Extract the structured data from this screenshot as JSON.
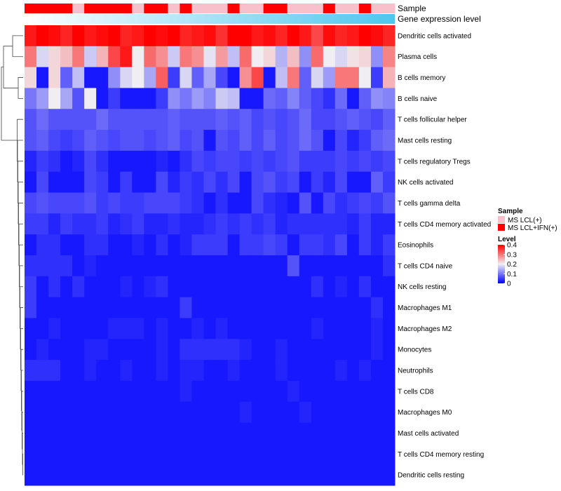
{
  "chart_data": {
    "type": "heatmap",
    "n_samples": 31,
    "annotation_labels": [
      "Sample",
      "Gene expression level"
    ],
    "sample_groups": [
      1,
      1,
      1,
      1,
      0,
      1,
      1,
      1,
      1,
      0,
      1,
      1,
      0,
      1,
      0,
      0,
      0,
      1,
      0,
      0,
      1,
      1,
      0,
      0,
      0,
      1,
      0,
      0,
      1,
      0,
      0
    ],
    "rows": [
      {
        "label": "Dendritic cells activated",
        "values": [
          0.38,
          0.4,
          0.39,
          0.37,
          0.41,
          0.38,
          0.39,
          0.42,
          0.37,
          0.38,
          0.4,
          0.39,
          0.41,
          0.37,
          0.38,
          0.39,
          0.36,
          0.4,
          0.41,
          0.38,
          0.39,
          0.37,
          0.4,
          0.38,
          0.34,
          0.39,
          0.37,
          0.38,
          0.41,
          0.39,
          0.37
        ]
      },
      {
        "label": "Plasma cells",
        "values": [
          0.3,
          0.18,
          0.22,
          0.24,
          0.3,
          0.17,
          0.25,
          0.34,
          0.38,
          0.2,
          0.31,
          0.28,
          0.17,
          0.3,
          0.28,
          0.19,
          0.27,
          0.16,
          0.31,
          0.2,
          0.22,
          0.15,
          0.24,
          0.12,
          0.31,
          0.2,
          0.18,
          0.21,
          0.22,
          0.12,
          0.29
        ]
      },
      {
        "label": "B cells memory",
        "values": [
          0.22,
          0.02,
          0.22,
          0.08,
          0.16,
          0.02,
          0.02,
          0.12,
          0.18,
          0.2,
          0.14,
          0.32,
          0.05,
          0.18,
          0.08,
          0.14,
          0.06,
          0.02,
          0.28,
          0.34,
          0.02,
          0.16,
          0.3,
          0.08,
          0.18,
          0.13,
          0.3,
          0.3,
          0.2,
          0.05,
          0.25
        ]
      },
      {
        "label": "B cells naive",
        "values": [
          0.1,
          0.13,
          0.2,
          0.14,
          0.07,
          0.2,
          0.02,
          0.05,
          0.02,
          0.02,
          0.02,
          0.05,
          0.12,
          0.1,
          0.13,
          0.11,
          0.17,
          0.16,
          0.02,
          0.02,
          0.09,
          0.08,
          0.11,
          0.08,
          0.06,
          0.04,
          0.09,
          0.02,
          0.08,
          0.12,
          0.11
        ]
      },
      {
        "label": "T cells follicular helper",
        "values": [
          0.07,
          0.09,
          0.07,
          0.07,
          0.07,
          0.07,
          0.09,
          0.07,
          0.07,
          0.07,
          0.07,
          0.07,
          0.08,
          0.07,
          0.07,
          0.07,
          0.08,
          0.07,
          0.08,
          0.06,
          0.07,
          0.06,
          0.07,
          0.09,
          0.06,
          0.06,
          0.07,
          0.08,
          0.07,
          0.06,
          0.08
        ]
      },
      {
        "label": "Mast cells resting",
        "values": [
          0.07,
          0.08,
          0.06,
          0.05,
          0.06,
          0.08,
          0.07,
          0.06,
          0.07,
          0.07,
          0.06,
          0.07,
          0.08,
          0.06,
          0.07,
          0.02,
          0.07,
          0.06,
          0.08,
          0.06,
          0.08,
          0.06,
          0.07,
          0.09,
          0.07,
          0.02,
          0.06,
          0.03,
          0.05,
          0.08,
          0.09
        ]
      },
      {
        "label": "T cells regulatory  Tregs",
        "values": [
          0.03,
          0.05,
          0.04,
          0.02,
          0.03,
          0.06,
          0.04,
          0.02,
          0.02,
          0.02,
          0.02,
          0.03,
          0.02,
          0.04,
          0.06,
          0.05,
          0.06,
          0.06,
          0.05,
          0.06,
          0.05,
          0.06,
          0.07,
          0.05,
          0.05,
          0.05,
          0.06,
          0.05,
          0.06,
          0.05,
          0.06
        ]
      },
      {
        "label": "NK cells activated",
        "values": [
          0.02,
          0.06,
          0.02,
          0.02,
          0.02,
          0.06,
          0.05,
          0.02,
          0.05,
          0.02,
          0.02,
          0.06,
          0.03,
          0.05,
          0.04,
          0.06,
          0.04,
          0.06,
          0.02,
          0.06,
          0.07,
          0.05,
          0.06,
          0.02,
          0.05,
          0.03,
          0.06,
          0.02,
          0.02,
          0.08,
          0.05
        ]
      },
      {
        "label": "T cells gamma delta",
        "values": [
          0.06,
          0.07,
          0.06,
          0.06,
          0.06,
          0.07,
          0.05,
          0.06,
          0.05,
          0.05,
          0.06,
          0.06,
          0.06,
          0.05,
          0.04,
          0.02,
          0.04,
          0.02,
          0.02,
          0.06,
          0.04,
          0.03,
          0.02,
          0.07,
          0.02,
          0.06,
          0.04,
          0.05,
          0.06,
          0.05,
          0.07
        ]
      },
      {
        "label": "T cells CD4 memory activated",
        "values": [
          0.05,
          0.05,
          0.03,
          0.05,
          0.04,
          0.04,
          0.05,
          0.03,
          0.04,
          0.05,
          0.03,
          0.03,
          0.04,
          0.03,
          0.03,
          0.04,
          0.05,
          0.04,
          0.05,
          0.04,
          0.05,
          0.03,
          0.04,
          0.04,
          0.04,
          0.04,
          0.04,
          0.03,
          0.05,
          0.03,
          0.03
        ]
      },
      {
        "label": "Eosinophils",
        "values": [
          0.02,
          0.04,
          0.04,
          0.02,
          0.02,
          0.04,
          0.04,
          0.02,
          0.02,
          0.03,
          0.02,
          0.04,
          0.02,
          0.03,
          0.05,
          0.05,
          0.05,
          0.02,
          0.05,
          0.05,
          0.06,
          0.05,
          0.02,
          0.05,
          0.05,
          0.04,
          0.06,
          0.02,
          0.05,
          0.03,
          0.05
        ]
      },
      {
        "label": "T cells CD4 naive",
        "values": [
          0.04,
          0.04,
          0.04,
          0.04,
          0.02,
          0.03,
          0.02,
          0.02,
          0.02,
          0.02,
          0.02,
          0.02,
          0.02,
          0.02,
          0.02,
          0.02,
          0.02,
          0.02,
          0.02,
          0.02,
          0.02,
          0.02,
          0.07,
          0.02,
          0.02,
          0.02,
          0.02,
          0.02,
          0.02,
          0.02,
          0.04
        ]
      },
      {
        "label": "NK cells resting",
        "values": [
          0.05,
          0.02,
          0.04,
          0.02,
          0.04,
          0.02,
          0.02,
          0.02,
          0.03,
          0.02,
          0.03,
          0.04,
          0.02,
          0.02,
          0.02,
          0.02,
          0.02,
          0.02,
          0.02,
          0.02,
          0.02,
          0.02,
          0.02,
          0.02,
          0.04,
          0.02,
          0.03,
          0.02,
          0.04,
          0.02,
          0.02
        ]
      },
      {
        "label": "Macrophages M1",
        "values": [
          0.05,
          0.02,
          0.02,
          0.02,
          0.02,
          0.02,
          0.02,
          0.02,
          0.02,
          0.02,
          0.02,
          0.02,
          0.02,
          0.05,
          0.02,
          0.02,
          0.02,
          0.02,
          0.02,
          0.02,
          0.02,
          0.02,
          0.02,
          0.02,
          0.02,
          0.02,
          0.02,
          0.02,
          0.02,
          0.04,
          0.02
        ]
      },
      {
        "label": "Macrophages M2",
        "values": [
          0.02,
          0.02,
          0.03,
          0.02,
          0.02,
          0.02,
          0.02,
          0.03,
          0.03,
          0.03,
          0.02,
          0.03,
          0.02,
          0.02,
          0.03,
          0.02,
          0.03,
          0.02,
          0.02,
          0.02,
          0.02,
          0.02,
          0.02,
          0.02,
          0.03,
          0.02,
          0.02,
          0.02,
          0.02,
          0.03,
          0.02
        ]
      },
      {
        "label": "Monocytes",
        "values": [
          0.02,
          0.03,
          0.02,
          0.02,
          0.02,
          0.03,
          0.03,
          0.02,
          0.02,
          0.02,
          0.02,
          0.03,
          0.02,
          0.04,
          0.04,
          0.04,
          0.04,
          0.04,
          0.03,
          0.02,
          0.02,
          0.03,
          0.02,
          0.02,
          0.02,
          0.02,
          0.02,
          0.02,
          0.02,
          0.03,
          0.02
        ]
      },
      {
        "label": "Neutrophils",
        "values": [
          0.04,
          0.04,
          0.04,
          0.02,
          0.02,
          0.03,
          0.02,
          0.02,
          0.03,
          0.02,
          0.02,
          0.03,
          0.02,
          0.03,
          0.03,
          0.02,
          0.02,
          0.03,
          0.02,
          0.02,
          0.02,
          0.03,
          0.02,
          0.02,
          0.02,
          0.02,
          0.03,
          0.02,
          0.03,
          0.02,
          0.02
        ]
      },
      {
        "label": "T cells CD8",
        "values": [
          0.02,
          0.02,
          0.02,
          0.02,
          0.02,
          0.02,
          0.02,
          0.02,
          0.02,
          0.02,
          0.02,
          0.02,
          0.02,
          0.03,
          0.02,
          0.02,
          0.02,
          0.02,
          0.02,
          0.02,
          0.02,
          0.02,
          0.03,
          0.02,
          0.02,
          0.02,
          0.02,
          0.02,
          0.02,
          0.02,
          0.02
        ]
      },
      {
        "label": "Macrophages M0",
        "values": [
          0.02,
          0.02,
          0.02,
          0.02,
          0.02,
          0.02,
          0.02,
          0.02,
          0.02,
          0.02,
          0.02,
          0.02,
          0.02,
          0.02,
          0.02,
          0.02,
          0.02,
          0.02,
          0.03,
          0.02,
          0.02,
          0.02,
          0.02,
          0.03,
          0.02,
          0.02,
          0.02,
          0.02,
          0.02,
          0.02,
          0.02
        ]
      },
      {
        "label": "Mast cells activated",
        "values": [
          0.02,
          0.02,
          0.02,
          0.02,
          0.02,
          0.02,
          0.02,
          0.02,
          0.02,
          0.02,
          0.02,
          0.02,
          0.02,
          0.02,
          0.02,
          0.02,
          0.02,
          0.02,
          0.02,
          0.02,
          0.02,
          0.02,
          0.02,
          0.02,
          0.02,
          0.02,
          0.02,
          0.02,
          0.02,
          0.02,
          0.02
        ]
      },
      {
        "label": "T cells CD4 memory resting",
        "values": [
          0.02,
          0.02,
          0.02,
          0.02,
          0.02,
          0.02,
          0.02,
          0.02,
          0.02,
          0.02,
          0.02,
          0.02,
          0.02,
          0.02,
          0.02,
          0.02,
          0.02,
          0.02,
          0.02,
          0.02,
          0.02,
          0.02,
          0.02,
          0.02,
          0.02,
          0.02,
          0.02,
          0.02,
          0.02,
          0.02,
          0.02
        ]
      },
      {
        "label": "Dendritic cells resting",
        "values": [
          0.02,
          0.02,
          0.02,
          0.02,
          0.02,
          0.02,
          0.02,
          0.02,
          0.02,
          0.02,
          0.02,
          0.02,
          0.02,
          0.02,
          0.02,
          0.02,
          0.02,
          0.02,
          0.02,
          0.02,
          0.02,
          0.02,
          0.02,
          0.02,
          0.02,
          0.02,
          0.02,
          0.02,
          0.02,
          0.02,
          0.02
        ]
      }
    ],
    "color_scale": {
      "min": 0,
      "max": 0.4,
      "low": "#0000ff",
      "mid": "#f0eef2",
      "high": "#ff0000",
      "midpoint": 0.2
    },
    "legend": {
      "sample_title": "Sample",
      "sample_entries": [
        {
          "label": "MS LCL(+)",
          "color": "#f7c0cb"
        },
        {
          "label": "MS LCL+IFN(+)",
          "color": "#ff0000"
        }
      ],
      "level_title": "Level",
      "level_ticks": [
        "0.4",
        "0.3",
        "0.2",
        "0.1",
        "0"
      ]
    },
    "expression_gradient": {
      "start": "#ffffff",
      "end": "#4dc6ee"
    }
  }
}
